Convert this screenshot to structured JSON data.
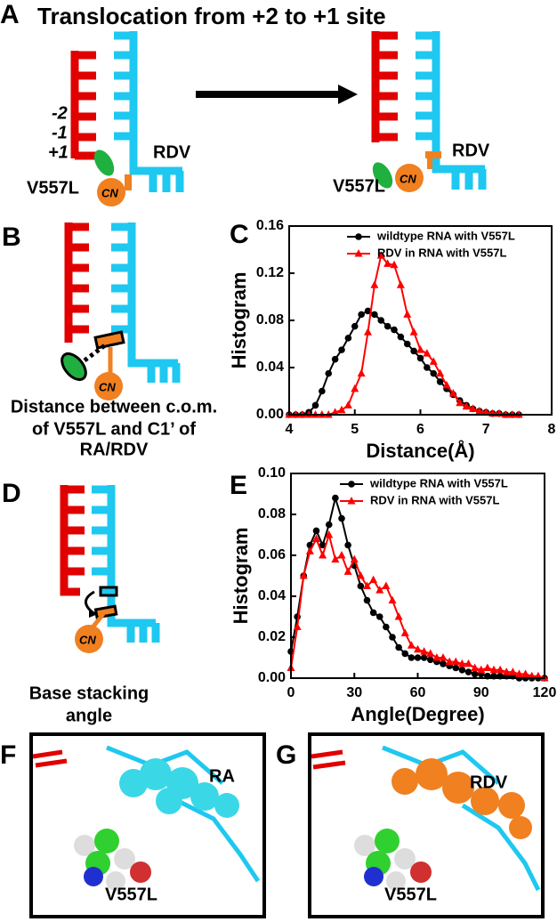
{
  "panel_a": {
    "letter": "A",
    "title": "Translocation from +2 to +1 site",
    "left": {
      "positions": [
        "-2",
        "-1",
        "+1"
      ],
      "drug": "RDV",
      "mutant": "V557L",
      "group": "CN"
    },
    "right": {
      "drug": "RDV",
      "mutant": "V557L",
      "group": "CN"
    }
  },
  "panel_b": {
    "letter": "B",
    "group": "CN",
    "caption": [
      "Distance between c.o.m.",
      "of V557L and C1’ of",
      "RA/RDV"
    ]
  },
  "panel_c": {
    "letter": "C"
  },
  "panel_d": {
    "letter": "D",
    "group": "CN",
    "caption": [
      "Base stacking",
      "angle"
    ]
  },
  "panel_e": {
    "letter": "E"
  },
  "panel_f": {
    "letter": "F",
    "ligand": "RA",
    "mutant": "V557L"
  },
  "panel_g": {
    "letter": "G",
    "ligand": "RDV",
    "mutant": "V557L"
  },
  "chart_data": [
    {
      "type": "line",
      "xlabel": "Distance(Å)",
      "ylabel": "Histogram",
      "x": [
        4.0,
        4.1,
        4.2,
        4.3,
        4.4,
        4.5,
        4.6,
        4.7,
        4.8,
        4.9,
        5.0,
        5.1,
        5.2,
        5.3,
        5.4,
        5.5,
        5.6,
        5.7,
        5.8,
        5.9,
        6.0,
        6.1,
        6.2,
        6.3,
        6.4,
        6.5,
        6.6,
        6.7,
        6.8,
        6.9,
        7.0,
        7.1,
        7.2,
        7.3,
        7.4,
        7.5
      ],
      "series": [
        {
          "name": "wildtype RNA with V557L",
          "color": "#000000",
          "marker": "circle",
          "values": [
            0,
            0,
            0,
            0.002,
            0.008,
            0.02,
            0.035,
            0.047,
            0.055,
            0.065,
            0.075,
            0.085,
            0.088,
            0.085,
            0.08,
            0.075,
            0.072,
            0.066,
            0.06,
            0.054,
            0.048,
            0.04,
            0.035,
            0.028,
            0.022,
            0.017,
            0.012,
            0.008,
            0.005,
            0.003,
            0.002,
            0.001,
            0.001,
            0,
            0,
            0
          ]
        },
        {
          "name": "RDV in RNA with V557L",
          "color": "#ff0000",
          "marker": "triangle",
          "values": [
            0,
            0,
            0,
            0,
            0,
            0,
            0,
            0.002,
            0.004,
            0.008,
            0.022,
            0.035,
            0.07,
            0.11,
            0.135,
            0.128,
            0.127,
            0.11,
            0.085,
            0.07,
            0.055,
            0.052,
            0.045,
            0.035,
            0.025,
            0.018,
            0.01,
            0.007,
            0.005,
            0.003,
            0.002,
            0.001,
            0.001,
            0,
            0,
            0
          ]
        }
      ],
      "xlim": [
        4,
        8
      ],
      "xticks": [
        4,
        5,
        6,
        7,
        8
      ],
      "ylim": [
        0,
        0.16
      ],
      "yticks": [
        {
          "value": 0,
          "label": "0.00"
        },
        0.04,
        0.08,
        0.12,
        0.16
      ],
      "legend": "upper right"
    },
    {
      "type": "line",
      "xlabel": "Angle(Degree)",
      "ylabel": "Histogram",
      "x": [
        0,
        3,
        6,
        9,
        12,
        15,
        18,
        21,
        24,
        27,
        30,
        33,
        36,
        39,
        42,
        45,
        48,
        51,
        54,
        57,
        60,
        63,
        66,
        69,
        72,
        75,
        78,
        81,
        84,
        87,
        90,
        93,
        96,
        99,
        102,
        105,
        108,
        111,
        114,
        117,
        120
      ],
      "series": [
        {
          "name": "wildtype RNA with V557L",
          "color": "#000000",
          "marker": "circle",
          "values": [
            0.013,
            0.03,
            0.05,
            0.065,
            0.072,
            0.065,
            0.075,
            0.088,
            0.078,
            0.065,
            0.055,
            0.045,
            0.038,
            0.032,
            0.03,
            0.025,
            0.02,
            0.015,
            0.012,
            0.01,
            0.01,
            0.01,
            0.009,
            0.008,
            0.007,
            0.006,
            0.005,
            0.004,
            0.003,
            0.002,
            0.002,
            0.001,
            0.001,
            0.001,
            0.001,
            0.001,
            0,
            0,
            0,
            0,
            0
          ]
        },
        {
          "name": "RDV in RNA with V557L",
          "color": "#ff0000",
          "marker": "triangle",
          "values": [
            0.005,
            0.025,
            0.05,
            0.062,
            0.068,
            0.06,
            0.07,
            0.058,
            0.06,
            0.052,
            0.058,
            0.05,
            0.045,
            0.048,
            0.043,
            0.045,
            0.038,
            0.03,
            0.022,
            0.016,
            0.014,
            0.013,
            0.012,
            0.01,
            0.01,
            0.008,
            0.008,
            0.007,
            0.007,
            0.005,
            0.004,
            0.005,
            0.004,
            0.004,
            0.003,
            0.003,
            0.002,
            0.002,
            0.001,
            0.001,
            0
          ]
        }
      ],
      "xlim": [
        0,
        120
      ],
      "xticks": [
        0,
        30,
        60,
        90,
        120
      ],
      "ylim": [
        0,
        0.1
      ],
      "yticks": [
        {
          "value": 0,
          "label": "0.00"
        },
        0.02,
        0.04,
        0.06,
        0.08,
        {
          "value": 0.1,
          "label": "0.10"
        }
      ],
      "legend": "upper right"
    }
  ]
}
